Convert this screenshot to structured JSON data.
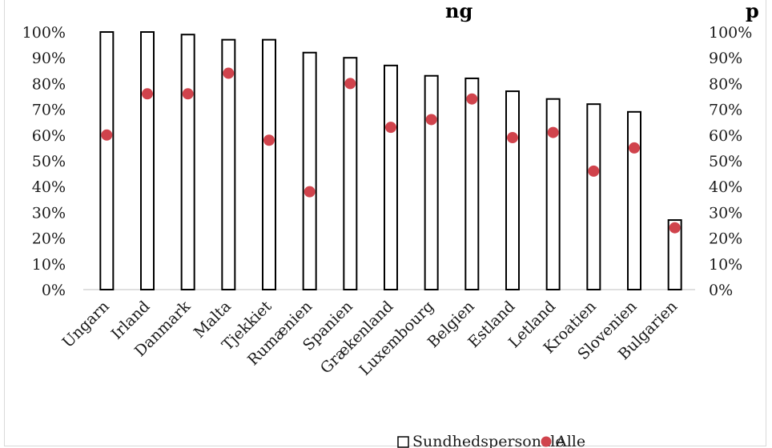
{
  "chart_data": {
    "type": "bar",
    "title": "…uddannelsesgrad … Alle … Sundhedspersonale … Europa",
    "title_visible_fragment": "ng",
    "title_visible_fragment_right": "p",
    "categories": [
      "Ungarn",
      "Irland",
      "Danmark",
      "Malta",
      "Tjekkiet",
      "Rumænien",
      "Spanien",
      "Grækenland",
      "Luxembourg",
      "Belgien",
      "Estland",
      "Letland",
      "Kroatien",
      "Slovenien",
      "Bulgarien"
    ],
    "series": [
      {
        "name": "Sundhedspersonale",
        "kind": "bar",
        "values": [
          100,
          100,
          99,
          97,
          97,
          92,
          90,
          87,
          83,
          82,
          77,
          74,
          72,
          69,
          27
        ]
      },
      {
        "name": "Alle",
        "kind": "scatter",
        "values": [
          60,
          76,
          76,
          84,
          58,
          38,
          80,
          63,
          66,
          74,
          59,
          61,
          46,
          55,
          24
        ]
      }
    ],
    "ylim": [
      0,
      100
    ],
    "y_ticks": [
      "0%",
      "10%",
      "20%",
      "30%",
      "40%",
      "50%",
      "60%",
      "70%",
      "80%",
      "90%",
      "100%"
    ],
    "secondary_y_ticks": [
      "0%",
      "10%",
      "20%",
      "30%",
      "40%",
      "50%",
      "60%",
      "70%",
      "80%",
      "90%",
      "100%"
    ],
    "xlabel": "",
    "ylabel": "",
    "legend_position": "bottom",
    "grid": false,
    "colors": {
      "bar_fill": "#ffffff",
      "bar_stroke": "#000000",
      "dot": "#d0434c"
    }
  }
}
